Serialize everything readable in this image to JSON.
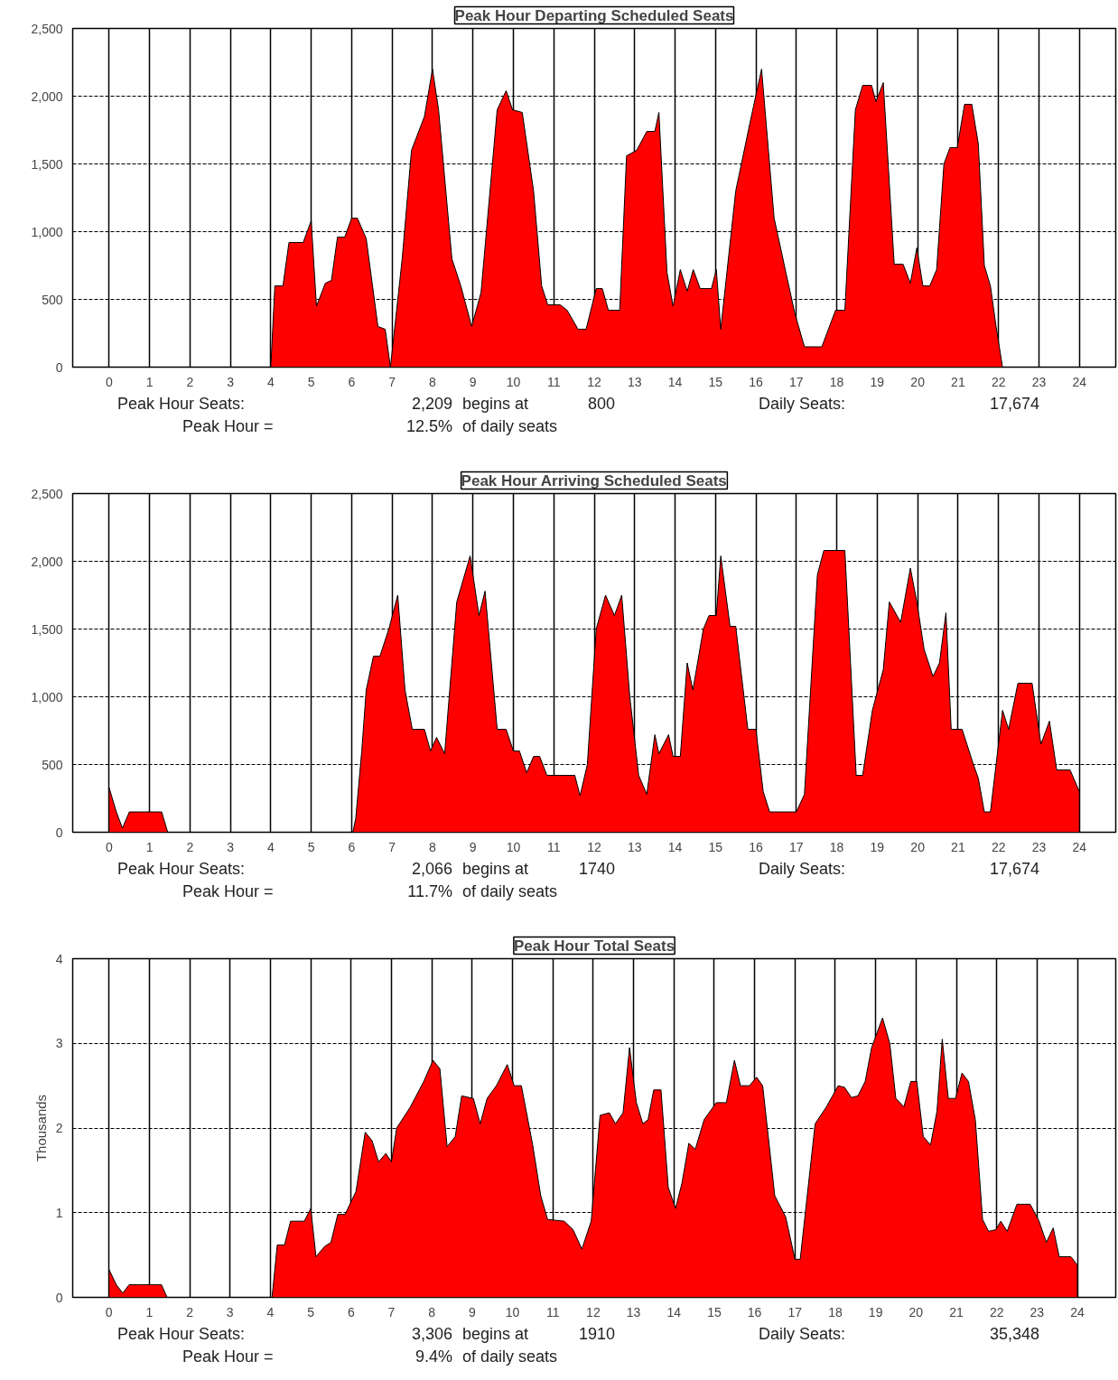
{
  "chart_data": [
    {
      "type": "area",
      "title": "Peak Hour Departing Scheduled Seats",
      "color": "#ff0000",
      "grid": true,
      "xlim": [
        -0.9,
        24.9
      ],
      "ylim": [
        0,
        2500
      ],
      "xticks": [
        0,
        1,
        2,
        3,
        4,
        5,
        6,
        7,
        8,
        9,
        10,
        11,
        12,
        13,
        14,
        15,
        16,
        17,
        18,
        19,
        20,
        21,
        22,
        23,
        24
      ],
      "yticks": [
        0,
        500,
        {
          "value": 1000,
          "label": "1,000"
        },
        {
          "value": 1500,
          "label": "1,500"
        },
        {
          "value": 2000,
          "label": "2,000"
        },
        {
          "value": 2500,
          "label": "2,500"
        }
      ],
      "x": [
        0,
        4.0,
        4.1,
        4.3,
        4.45,
        4.8,
        5.0,
        5.13,
        5.35,
        5.5,
        5.65,
        5.83,
        6.0,
        6.14,
        6.36,
        6.65,
        6.83,
        6.96,
        7.25,
        7.48,
        7.8,
        8.0,
        8.15,
        8.48,
        8.7,
        8.97,
        9.2,
        9.6,
        9.82,
        9.98,
        10.22,
        10.5,
        10.7,
        10.85,
        11.16,
        11.33,
        11.6,
        11.8,
        12.05,
        12.2,
        12.35,
        12.63,
        12.8,
        13.05,
        13.3,
        13.5,
        13.6,
        13.8,
        13.95,
        14.13,
        14.3,
        14.45,
        14.62,
        14.9,
        15.02,
        15.13,
        15.5,
        15.85,
        16.14,
        16.45,
        16.74,
        16.96,
        17.2,
        17.63,
        17.97,
        18.2,
        18.46,
        18.64,
        18.86,
        18.97,
        19.15,
        19.42,
        19.64,
        19.82,
        19.98,
        20.13,
        20.3,
        20.47,
        20.65,
        20.8,
        20.98,
        21.16,
        21.34,
        21.5,
        21.65,
        21.8,
        21.94,
        22.1,
        24
      ],
      "values": [
        0,
        0,
        600,
        600,
        920,
        920,
        1080,
        450,
        620,
        640,
        960,
        960,
        1100,
        1100,
        950,
        300,
        280,
        0,
        800,
        1600,
        1850,
        2200,
        1900,
        800,
        600,
        300,
        550,
        1900,
        2040,
        1900,
        1880,
        1300,
        600,
        460,
        460,
        420,
        280,
        280,
        580,
        580,
        420,
        420,
        1560,
        1600,
        1740,
        1740,
        1880,
        700,
        450,
        720,
        560,
        720,
        580,
        580,
        720,
        280,
        1300,
        1800,
        2200,
        1100,
        700,
        400,
        150,
        150,
        420,
        420,
        1900,
        2080,
        2080,
        1960,
        2100,
        760,
        760,
        620,
        880,
        600,
        600,
        720,
        1500,
        1620,
        1620,
        1940,
        1940,
        1650,
        750,
        600,
        300,
        0,
        0
      ],
      "annotations": [
        "Peak Hour Seats:",
        "2,209",
        "begins at",
        "800",
        "Daily Seats:",
        "17,674",
        "Peak Hour =",
        "12.5%",
        "of daily seats"
      ]
    },
    {
      "type": "area",
      "title": "Peak Hour Arriving Scheduled Seats",
      "color": "#ff0000",
      "grid": true,
      "xlim": [
        -0.9,
        24.9
      ],
      "ylim": [
        0,
        2500
      ],
      "xticks": [
        0,
        1,
        2,
        3,
        4,
        5,
        6,
        7,
        8,
        9,
        10,
        11,
        12,
        13,
        14,
        15,
        16,
        17,
        18,
        19,
        20,
        21,
        22,
        23,
        24
      ],
      "yticks": [
        0,
        500,
        {
          "value": 1000,
          "label": "1,000"
        },
        {
          "value": 1500,
          "label": "1,500"
        },
        {
          "value": 2000,
          "label": "2,000"
        },
        {
          "value": 2500,
          "label": "2,500"
        }
      ],
      "x": [
        0,
        0.18,
        0.33,
        0.5,
        1.3,
        1.45,
        6.03,
        6.1,
        6.25,
        6.36,
        6.54,
        6.7,
        6.92,
        7.14,
        7.32,
        7.5,
        7.8,
        7.95,
        8.1,
        8.3,
        8.6,
        8.93,
        9.15,
        9.3,
        9.6,
        9.82,
        10.0,
        10.15,
        10.33,
        10.5,
        10.65,
        10.83,
        11.52,
        11.65,
        11.83,
        12.05,
        12.28,
        12.5,
        12.68,
        12.88,
        13.1,
        13.3,
        13.5,
        13.6,
        13.84,
        13.95,
        14.13,
        14.3,
        14.44,
        14.7,
        14.84,
        15.02,
        15.13,
        15.36,
        15.5,
        15.8,
        16.0,
        16.18,
        16.34,
        17.0,
        17.2,
        17.52,
        17.68,
        18.2,
        18.48,
        18.64,
        18.88,
        19.15,
        19.3,
        19.58,
        19.82,
        19.98,
        20.16,
        20.38,
        20.54,
        20.7,
        20.83,
        21.1,
        21.38,
        21.5,
        21.65,
        21.8,
        22.1,
        22.25,
        22.48,
        22.83,
        23.05,
        23.26,
        23.44,
        23.77,
        24.0
      ],
      "values": [
        330,
        150,
        30,
        150,
        150,
        0,
        0,
        100,
        600,
        1050,
        1300,
        1300,
        1500,
        1750,
        1050,
        760,
        760,
        600,
        700,
        580,
        1700,
        2040,
        1600,
        1780,
        760,
        760,
        600,
        600,
        440,
        560,
        560,
        420,
        420,
        270,
        500,
        1500,
        1750,
        1600,
        1750,
        1000,
        420,
        280,
        720,
        580,
        720,
        560,
        560,
        1250,
        1050,
        1500,
        1600,
        1600,
        2040,
        1520,
        1520,
        760,
        760,
        300,
        150,
        150,
        280,
        1900,
        2080,
        2080,
        420,
        420,
        900,
        1200,
        1700,
        1550,
        1950,
        1700,
        1350,
        1150,
        1250,
        1620,
        760,
        760,
        500,
        400,
        150,
        150,
        900,
        760,
        1100,
        1100,
        650,
        820,
        460,
        460,
        300
      ],
      "annotations": [
        "Peak Hour Seats:",
        "2,066",
        "begins at",
        "1740",
        "Daily Seats:",
        "17,674",
        "Peak Hour =",
        "11.7%",
        "of daily seats"
      ]
    },
    {
      "type": "area",
      "title": "Peak Hour Total Seats",
      "ylabel": "Thousands",
      "color": "#ff0000",
      "grid": true,
      "xlim": [
        -0.9,
        24.95
      ],
      "ylim": [
        0,
        4
      ],
      "xticks": [
        0,
        1,
        2,
        3,
        4,
        5,
        6,
        7,
        8,
        9,
        10,
        11,
        12,
        13,
        14,
        15,
        16,
        17,
        18,
        19,
        20,
        21,
        22,
        23,
        24
      ],
      "yticks": [
        0,
        1,
        2,
        3,
        4
      ],
      "x": [
        0,
        0.18,
        0.34,
        0.5,
        1.3,
        1.44,
        4.04,
        4.17,
        4.35,
        4.5,
        4.84,
        5.0,
        5.13,
        5.34,
        5.5,
        5.67,
        5.85,
        6.12,
        6.35,
        6.52,
        6.68,
        6.86,
        7.0,
        7.13,
        7.47,
        7.8,
        8.03,
        8.2,
        8.38,
        8.58,
        8.74,
        9.03,
        9.2,
        9.37,
        9.6,
        9.87,
        10.04,
        10.22,
        10.5,
        10.7,
        10.87,
        11.28,
        11.5,
        11.72,
        11.95,
        12.17,
        12.4,
        12.55,
        12.74,
        12.9,
        13.07,
        13.23,
        13.36,
        13.5,
        13.68,
        13.86,
        14.04,
        14.2,
        14.37,
        14.53,
        14.75,
        15.05,
        15.3,
        15.5,
        15.65,
        15.87,
        16.05,
        16.2,
        16.5,
        16.77,
        17.0,
        17.13,
        17.5,
        17.78,
        18.07,
        18.23,
        18.4,
        18.56,
        18.74,
        18.9,
        19.17,
        19.35,
        19.5,
        19.7,
        19.87,
        20.02,
        20.18,
        20.36,
        20.52,
        20.65,
        20.8,
        20.98,
        21.14,
        21.3,
        21.47,
        21.65,
        21.8,
        21.98,
        22.1,
        22.26,
        22.5,
        22.83,
        23.05,
        23.23,
        23.4,
        23.55,
        23.84,
        24.0
      ],
      "values": [
        0.33,
        0.15,
        0.05,
        0.15,
        0.15,
        0,
        0,
        0.62,
        0.62,
        0.9,
        0.9,
        1.05,
        0.48,
        0.6,
        0.65,
        0.98,
        0.98,
        1.25,
        1.95,
        1.85,
        1.6,
        1.7,
        1.6,
        2.0,
        2.25,
        2.55,
        2.8,
        2.7,
        1.78,
        1.9,
        2.38,
        2.35,
        2.05,
        2.35,
        2.5,
        2.75,
        2.5,
        2.5,
        1.8,
        1.2,
        0.92,
        0.9,
        0.8,
        0.57,
        0.9,
        2.15,
        2.18,
        2.05,
        2.18,
        2.95,
        2.3,
        2.05,
        2.1,
        2.45,
        2.45,
        1.3,
        1.05,
        1.35,
        1.82,
        1.75,
        2.1,
        2.3,
        2.3,
        2.8,
        2.5,
        2.5,
        2.6,
        2.5,
        1.2,
        0.95,
        0.45,
        0.45,
        2.05,
        2.25,
        2.5,
        2.48,
        2.36,
        2.38,
        2.55,
        2.95,
        3.3,
        3.0,
        2.35,
        2.25,
        2.55,
        2.55,
        1.9,
        1.8,
        2.2,
        3.05,
        2.35,
        2.35,
        2.65,
        2.55,
        2.1,
        0.92,
        0.78,
        0.8,
        0.9,
        0.78,
        1.1,
        1.1,
        0.9,
        0.65,
        0.82,
        0.48,
        0.48,
        0.38
      ],
      "annotations": [
        "Peak Hour Seats:",
        "3,306",
        "begins at",
        "1910",
        "Daily Seats:",
        "35,348",
        "Peak Hour =",
        "9.4%",
        "of daily seats"
      ]
    }
  ]
}
